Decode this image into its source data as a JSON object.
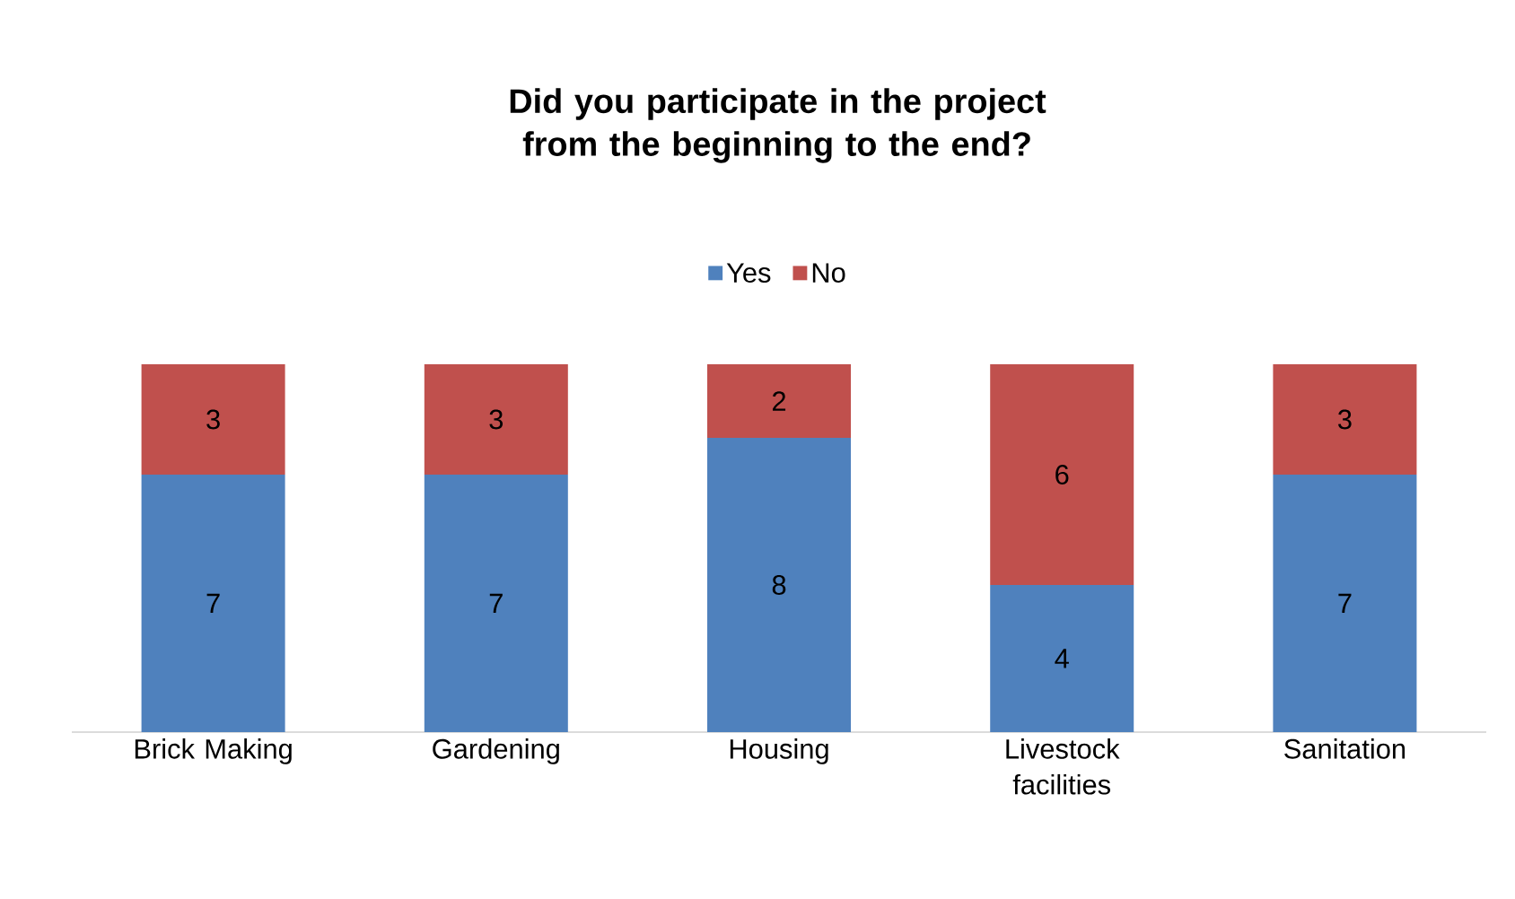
{
  "chart_data": {
    "type": "bar",
    "title": "Did you participate in the project from the beginning to the end?",
    "categories": [
      "Brick Making",
      "Gardening",
      "Housing",
      "Livestock facilities",
      "Sanitation"
    ],
    "stacked": true,
    "data_labels": true,
    "legend": "top",
    "series": [
      {
        "name": "Yes",
        "color": "#4f81bd",
        "values": [
          7,
          7,
          8,
          4,
          7
        ]
      },
      {
        "name": "No",
        "color": "#c0504d",
        "values": [
          3,
          3,
          2,
          6,
          3
        ]
      }
    ]
  }
}
